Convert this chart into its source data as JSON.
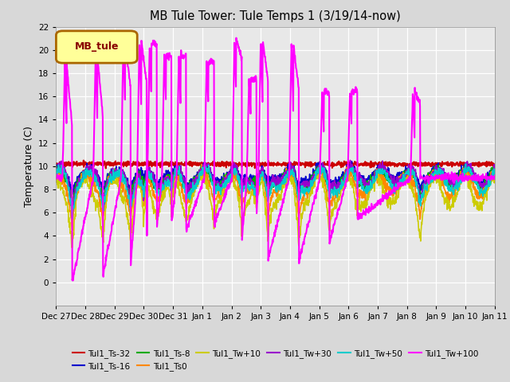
{
  "title": "MB Tule Tower: Tule Temps 1 (3/19/14-now)",
  "ylabel": "Temperature (C)",
  "ylim": [
    -2,
    22
  ],
  "yticks": [
    0,
    2,
    4,
    6,
    8,
    10,
    12,
    14,
    16,
    18,
    20,
    22
  ],
  "legend_box_label": "MB_tule",
  "legend_box_color": "#ffff99",
  "legend_box_border": "#aa6600",
  "series_order": [
    "Tul1_Ts-32",
    "Tul1_Ts-16",
    "Tul1_Ts-8",
    "Tul1_Ts0",
    "Tul1_Tw+10",
    "Tul1_Tw+30",
    "Tul1_Tw+50",
    "Tul1_Tw+100"
  ],
  "series": {
    "Tul1_Ts-32": {
      "color": "#cc0000",
      "lw": 1.5
    },
    "Tul1_Ts-16": {
      "color": "#0000cc",
      "lw": 1.2
    },
    "Tul1_Ts-8": {
      "color": "#00aa00",
      "lw": 1.2
    },
    "Tul1_Ts0": {
      "color": "#ff8800",
      "lw": 1.2
    },
    "Tul1_Tw+10": {
      "color": "#cccc00",
      "lw": 1.2
    },
    "Tul1_Tw+30": {
      "color": "#9900cc",
      "lw": 1.2
    },
    "Tul1_Tw+50": {
      "color": "#00cccc",
      "lw": 1.2
    },
    "Tul1_Tw+100": {
      "color": "#ff00ff",
      "lw": 1.5
    }
  },
  "x_tick_labels": [
    "Dec 27",
    "Dec 28",
    "Dec 29",
    "Dec 30",
    "Dec 31",
    "Jan 1",
    "Jan 2",
    "Jan 3",
    "Jan 4",
    "Jan 5",
    "Jan 6",
    "Jan 7",
    "Jan 8",
    "Jan 9",
    "Jan 10",
    "Jan 11"
  ],
  "n_days": 15,
  "pts_per_day": 96
}
